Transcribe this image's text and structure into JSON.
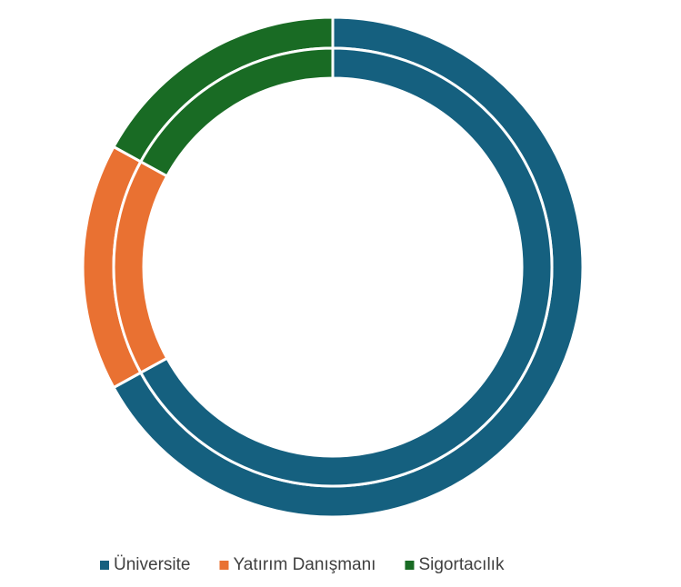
{
  "chart_data": {
    "type": "doughnut",
    "categories": [
      "Üniversite",
      "Yatırım Danışmanı",
      "Sigortacılık"
    ],
    "colors": [
      "#15607f",
      "#e97132",
      "#196b24"
    ],
    "series": [
      {
        "values": [
          67,
          16,
          17
        ]
      },
      {
        "values": [
          67,
          16,
          17
        ]
      }
    ],
    "legend": "bottom"
  }
}
